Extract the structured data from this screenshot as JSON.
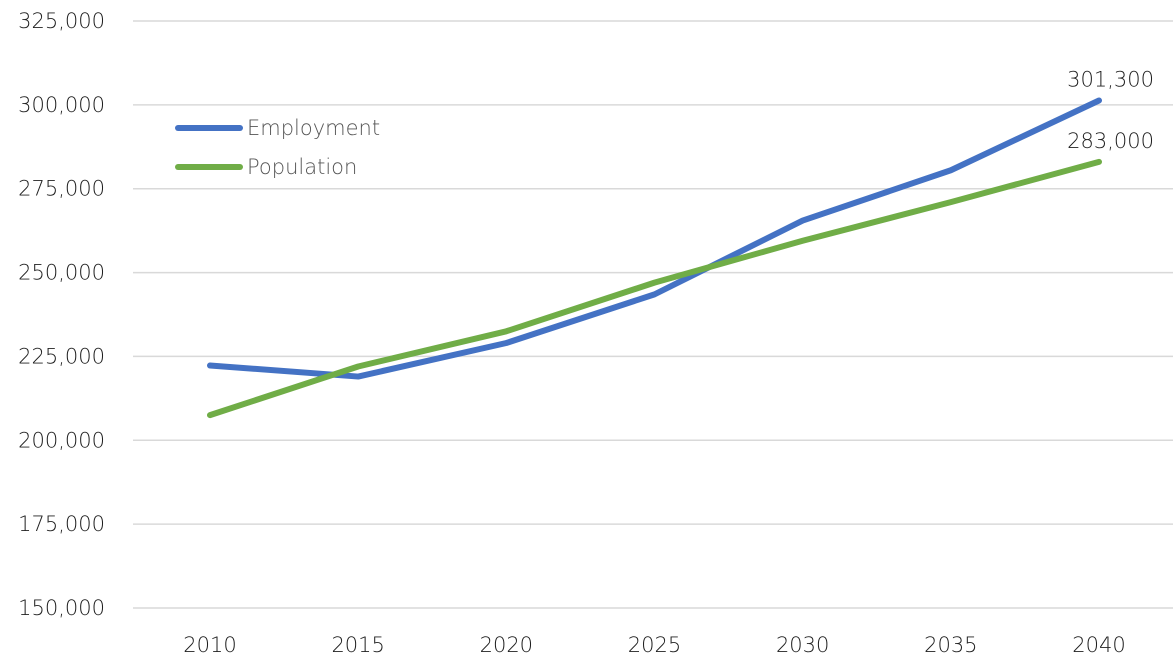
{
  "chart_data": {
    "type": "line",
    "title": "",
    "xlabel": "",
    "ylabel": "",
    "categories": [
      "2010",
      "2015",
      "2020",
      "2025",
      "2030",
      "2035",
      "2040"
    ],
    "ylim": [
      150000,
      325000
    ],
    "yticks": [
      150000,
      175000,
      200000,
      225000,
      250000,
      275000,
      300000,
      325000
    ],
    "ytick_labels": [
      "150,000",
      "175,000",
      "200,000",
      "225,000",
      "250,000",
      "275,000",
      "300,000",
      "325,000"
    ],
    "grid": true,
    "legend_position": "top-left",
    "series": [
      {
        "name": "Employment",
        "color": "#4472C4",
        "values": [
          222300,
          219000,
          229000,
          243500,
          265500,
          280500,
          301300
        ],
        "end_label": "301,300"
      },
      {
        "name": "Population",
        "color": "#70AD47",
        "values": [
          207500,
          222000,
          232500,
          247000,
          259500,
          271000,
          283000
        ],
        "end_label": "283,000"
      }
    ]
  }
}
